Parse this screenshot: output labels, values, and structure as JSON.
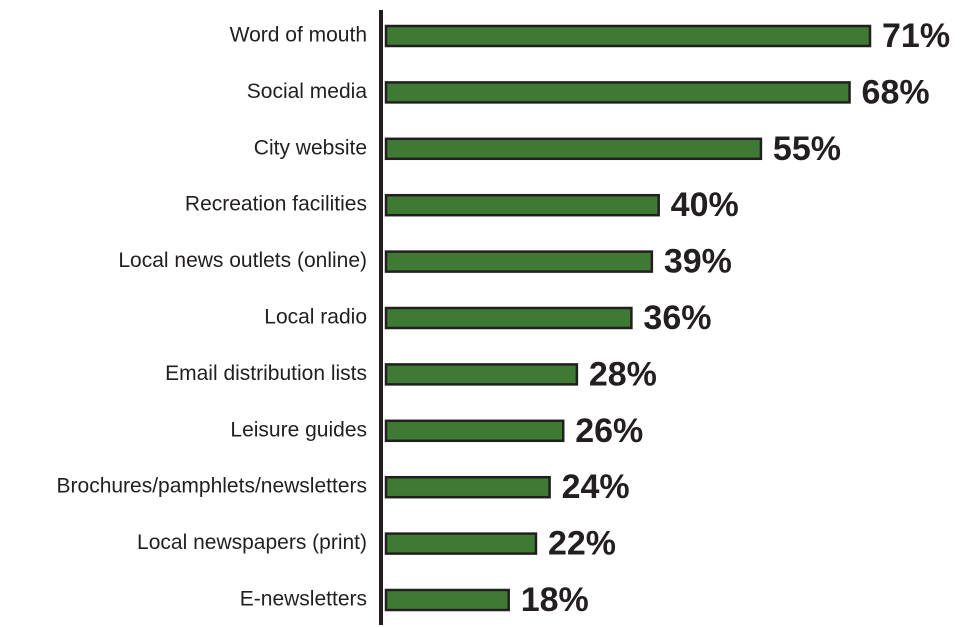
{
  "chart_data": {
    "type": "bar",
    "orientation": "horizontal",
    "categories": [
      "Word of mouth",
      "Social media",
      "City website",
      "Recreation facilities",
      "Local news outlets (online)",
      "Local radio",
      "Email distribution lists",
      "Leisure guides",
      "Brochures/pamphlets/newsletters",
      "Local newspapers (print)",
      "E-newsletters"
    ],
    "values": [
      71,
      68,
      55,
      40,
      39,
      36,
      28,
      26,
      24,
      22,
      18
    ],
    "value_labels": [
      "71%",
      "68%",
      "55%",
      "40%",
      "39%",
      "36%",
      "28%",
      "26%",
      "24%",
      "22%",
      "18%"
    ],
    "color": "#3e7a33"
  }
}
